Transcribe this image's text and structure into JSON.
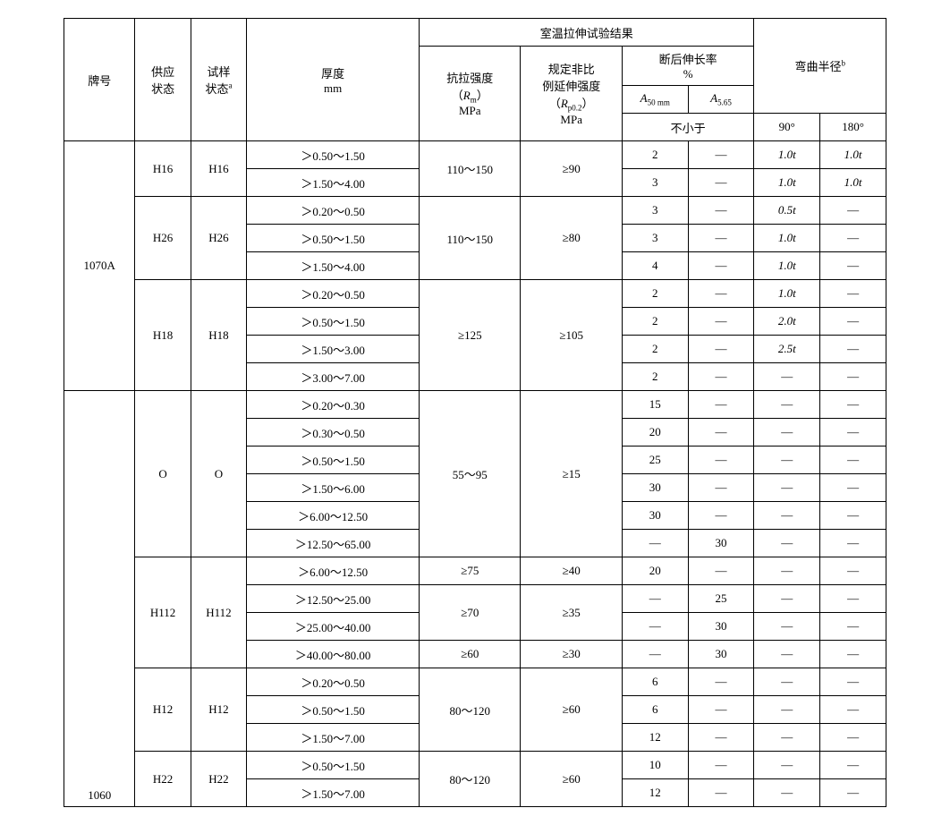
{
  "header": {
    "grade": "牌号",
    "supply": "供应\n状态",
    "spec": "试样\n状态",
    "spec_sup": "a",
    "thickness": "厚度\nmm",
    "tensile_group": "室温拉伸试验结果",
    "rm_l1": "抗拉强度",
    "rm_l2": "（",
    "rm_sym": "R",
    "rm_sub": "m",
    "rm_l2b": "）",
    "rm_l3": "MPa",
    "rp_l1": "规定非比",
    "rp_l2": "例延伸强度",
    "rp_l3a": "（",
    "rp_sym": "R",
    "rp_sub": "p0.2",
    "rp_l3b": "）",
    "rp_l4": "MPa",
    "elong_l1": "断后伸长率",
    "elong_l2": "%",
    "a50": "A",
    "a50_sub": "50 mm",
    "a565": "A",
    "a565_sub": "5.65",
    "not_less": "不小于",
    "bend": "弯曲半径",
    "bend_sup": "b",
    "b90": "90°",
    "b180": "180°"
  },
  "grades": {
    "g1": "1070A",
    "g2": "1060"
  },
  "states": {
    "H16": "H16",
    "H26": "H26",
    "H18": "H18",
    "O": "O",
    "H112": "H112",
    "H12": "H12",
    "H22": "H22"
  },
  "rows": [
    {
      "th": "＞0.50～1.50",
      "rm": "110～150",
      "rp": "≥90",
      "a50": "2",
      "a565": "—",
      "b90": "1.0t",
      "b180": "1.0t"
    },
    {
      "th": "＞1.50～4.00",
      "a50": "3",
      "a565": "—",
      "b90": "1.0t",
      "b180": "1.0t"
    },
    {
      "th": "＞0.20～0.50",
      "rm": "110～150",
      "rp": "≥80",
      "a50": "3",
      "a565": "—",
      "b90": "0.5t",
      "b180": "—"
    },
    {
      "th": "＞0.50～1.50",
      "a50": "3",
      "a565": "—",
      "b90": "1.0t",
      "b180": "—"
    },
    {
      "th": "＞1.50～4.00",
      "a50": "4",
      "a565": "—",
      "b90": "1.0t",
      "b180": "—"
    },
    {
      "th": "＞0.20～0.50",
      "rm": "≥125",
      "rp": "≥105",
      "a50": "2",
      "a565": "—",
      "b90": "1.0t",
      "b180": "—"
    },
    {
      "th": "＞0.50～1.50",
      "a50": "2",
      "a565": "—",
      "b90": "2.0t",
      "b180": "—"
    },
    {
      "th": "＞1.50～3.00",
      "a50": "2",
      "a565": "—",
      "b90": "2.5t",
      "b180": "—"
    },
    {
      "th": "＞3.00～7.00",
      "a50": "2",
      "a565": "—",
      "b90": "—",
      "b180": "—"
    },
    {
      "th": "＞0.20～0.30",
      "rm": "55～95",
      "rp": "≥15",
      "a50": "15",
      "a565": "—",
      "b90": "—",
      "b180": "—"
    },
    {
      "th": "＞0.30～0.50",
      "a50": "20",
      "a565": "—",
      "b90": "—",
      "b180": "—"
    },
    {
      "th": "＞0.50～1.50",
      "a50": "25",
      "a565": "—",
      "b90": "—",
      "b180": "—"
    },
    {
      "th": "＞1.50～6.00",
      "a50": "30",
      "a565": "—",
      "b90": "—",
      "b180": "—"
    },
    {
      "th": "＞6.00～12.50",
      "a50": "30",
      "a565": "—",
      "b90": "—",
      "b180": "—"
    },
    {
      "th": "＞12.50～65.00",
      "a50": "—",
      "a565": "30",
      "b90": "—",
      "b180": "—"
    },
    {
      "th": "＞6.00～12.50",
      "rm": "≥75",
      "rp": "≥40",
      "a50": "20",
      "a565": "—",
      "b90": "—",
      "b180": "—"
    },
    {
      "th": "＞12.50～25.00",
      "rm": "≥70",
      "rp": "≥35",
      "a50": "—",
      "a565": "25",
      "b90": "—",
      "b180": "—"
    },
    {
      "th": "＞25.00～40.00",
      "rm": "≥70",
      "rp": "≥35",
      "a50": "—",
      "a565": "30",
      "b90": "—",
      "b180": "—"
    },
    {
      "th": "＞40.00～80.00",
      "rm": "≥60",
      "rp": "≥30",
      "a50": "—",
      "a565": "30",
      "b90": "—",
      "b180": "—"
    },
    {
      "th": "＞0.20～0.50",
      "rm": "80～120",
      "rp": "≥60",
      "a50": "6",
      "a565": "—",
      "b90": "—",
      "b180": "—"
    },
    {
      "th": "＞0.50～1.50",
      "a50": "6",
      "a565": "—",
      "b90": "—",
      "b180": "—"
    },
    {
      "th": "＞1.50～7.00",
      "a50": "12",
      "a565": "—",
      "b90": "—",
      "b180": "—"
    },
    {
      "th": "＞0.50～1.50",
      "rm": "80～120",
      "rp": "≥60",
      "a50": "10",
      "a565": "—",
      "b90": "—",
      "b180": "—"
    },
    {
      "th": "＞1.50～7.00",
      "a50": "12",
      "a565": "—",
      "b90": "—",
      "b180": "—"
    }
  ]
}
